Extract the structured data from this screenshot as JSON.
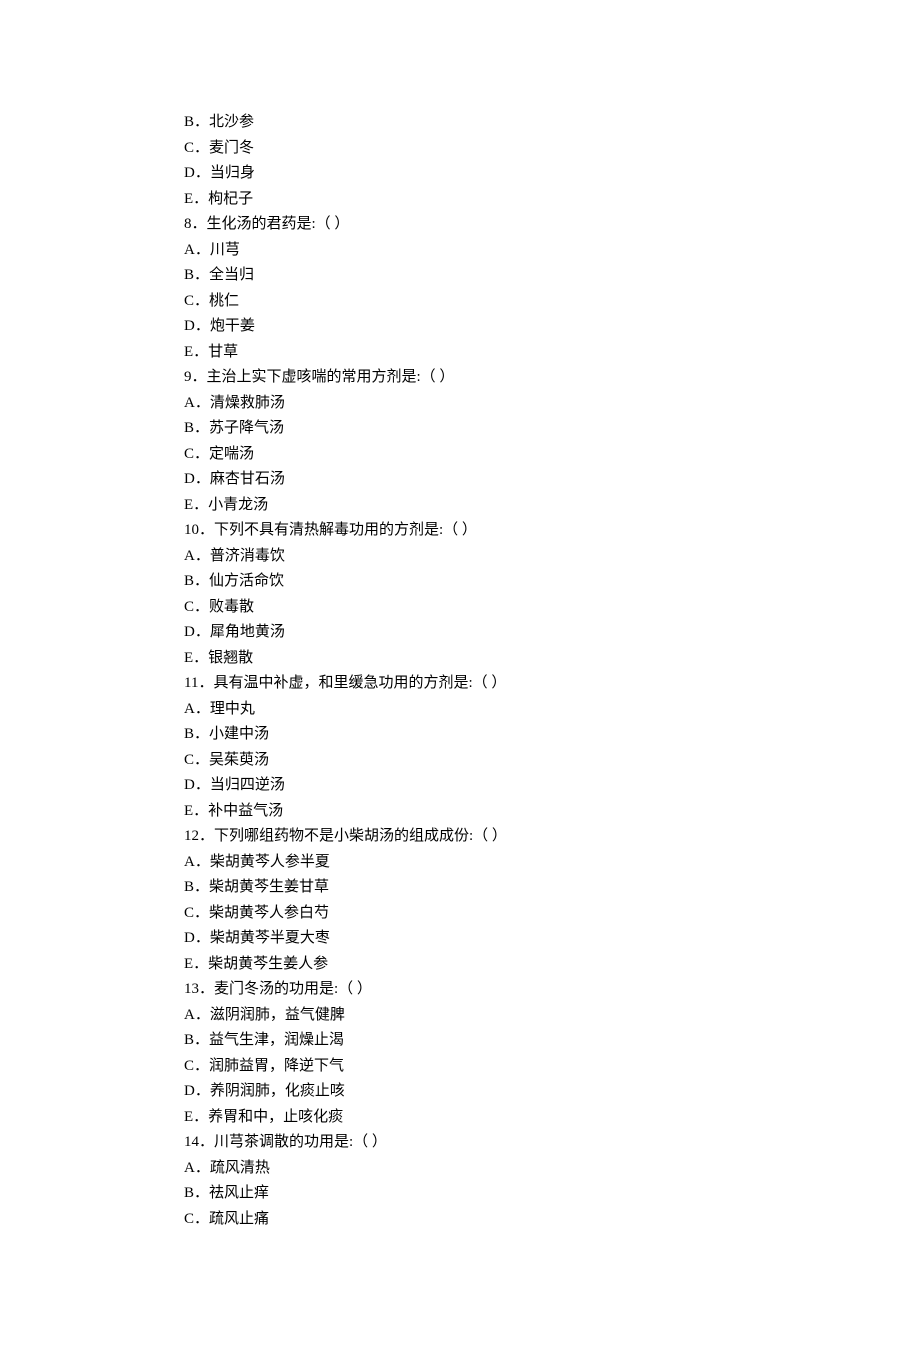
{
  "page": {
    "font_family": "SimSun",
    "font_size": 15,
    "line_height": 25.5,
    "text_color": "#000000",
    "background_color": "#ffffff"
  },
  "lines": [
    "B．北沙参",
    "C．麦门冬",
    "D．当归身",
    "E．枸杞子",
    "8．生化汤的君药是:（  ）",
    "A．川芎",
    "B．全当归",
    "C．桃仁",
    "D．炮干姜",
    "E．甘草",
    "9．主治上实下虚咳喘的常用方剂是:（  ）",
    "A．清燥救肺汤",
    "B．苏子降气汤",
    "C．定喘汤",
    "D．麻杏甘石汤",
    "E．小青龙汤",
    "10．下列不具有清热解毒功用的方剂是:（  ）",
    "A．普济消毒饮",
    "B．仙方活命饮",
    "C．败毒散",
    "D．犀角地黄汤",
    "E．银翘散",
    "11．具有温中补虚，和里缓急功用的方剂是:（  ）",
    "A．理中丸",
    "B．小建中汤",
    "C．吴茱萸汤",
    "D．当归四逆汤",
    "E．补中益气汤",
    "12．下列哪组药物不是小柴胡汤的组成成份:（  ）",
    "A．柴胡黄芩人参半夏",
    "B．柴胡黄芩生姜甘草",
    "C．柴胡黄芩人参白芍",
    "D．柴胡黄芩半夏大枣",
    "E．柴胡黄芩生姜人参",
    "13．麦门冬汤的功用是:（  ）",
    "A．滋阴润肺，益气健脾",
    "B．益气生津，润燥止渴",
    "C．润肺益胃，降逆下气",
    "D．养阴润肺，化痰止咳",
    "E．养胃和中，止咳化痰",
    "14．川芎茶调散的功用是:（  ）",
    "A．疏风清热",
    "B．祛风止痒",
    "C．疏风止痛"
  ]
}
